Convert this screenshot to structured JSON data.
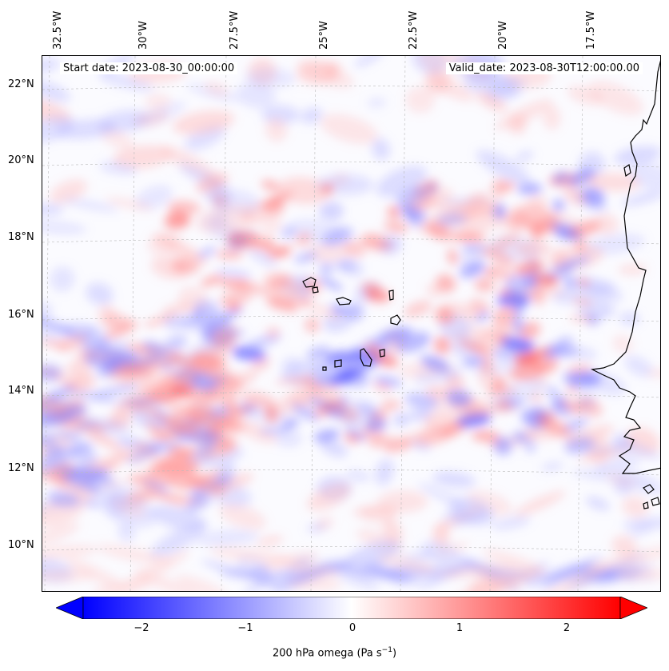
{
  "header": {
    "start_date": "Start date: 2023-08-30_00:00:00",
    "valid_date": "Valid_date: 2023-08-30T12:00:00.00"
  },
  "longitude_labels": [
    "32.5°W",
    "30°W",
    "27.5°W",
    "25°W",
    "22.5°W",
    "20°W",
    "17.5°W"
  ],
  "latitude_labels": [
    "22°N",
    "20°N",
    "18°N",
    "16°N",
    "14°N",
    "12°N",
    "10°N"
  ],
  "colorbar": {
    "ticks": [
      "−2",
      "−1",
      "0",
      "1",
      "2"
    ],
    "label": "200 hPa omega (Pa s",
    "label_sup": "−1",
    "label_end": ")",
    "min": -2.7,
    "max": 2.7,
    "cmap": "bwr",
    "colors": {
      "low": "#0000ff",
      "mid": "#ffffff",
      "high": "#ff0000"
    }
  },
  "map": {
    "field": "200 hPa omega",
    "coastline_color": "#000000",
    "gridlines": "dashed"
  }
}
